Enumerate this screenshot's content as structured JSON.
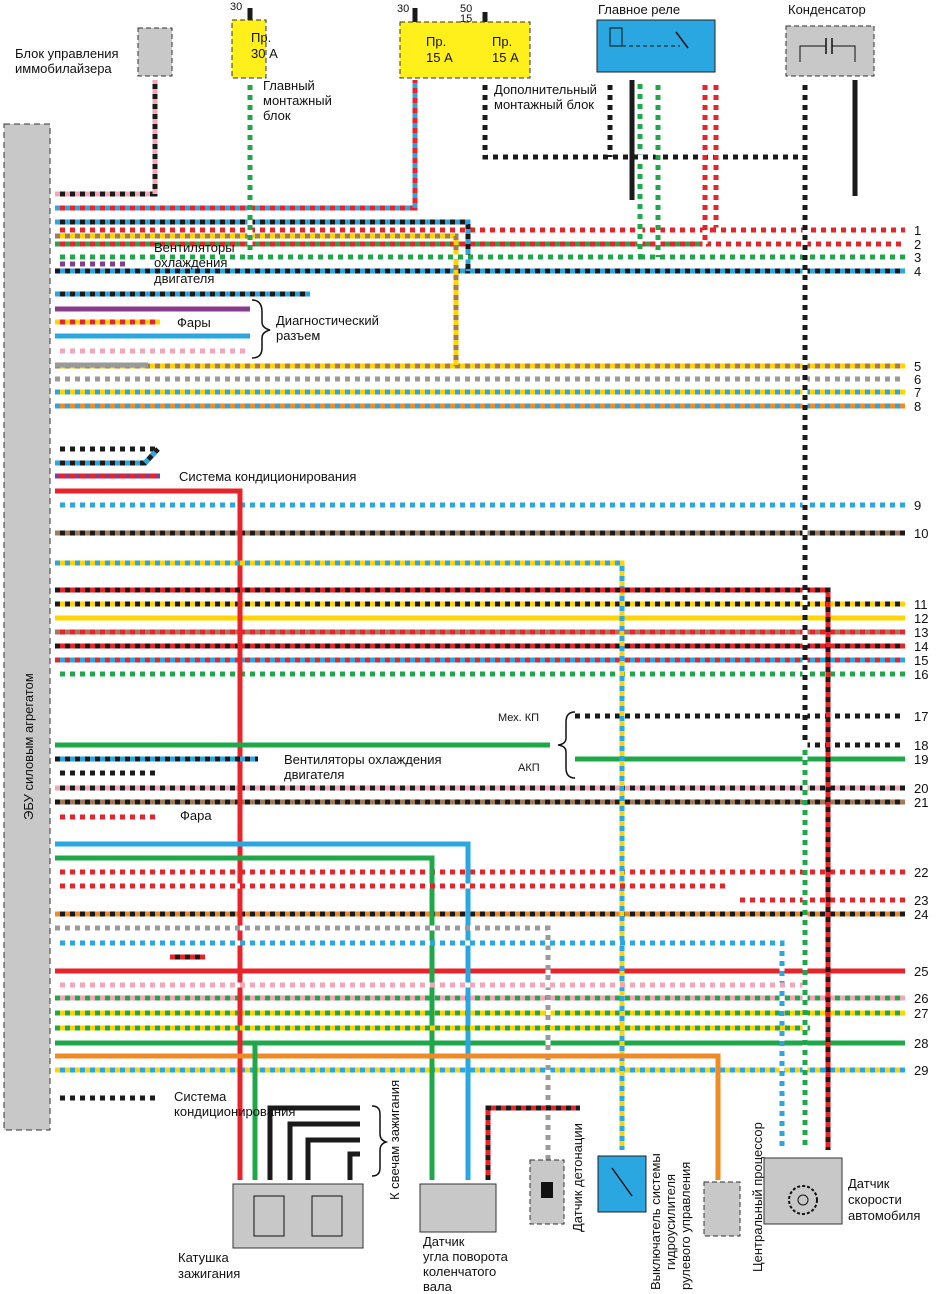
{
  "labels": {
    "immo": [
      "Блок управления",
      "иммобилайзера"
    ],
    "main_block": [
      "Главный",
      "монтажный",
      "блок"
    ],
    "aux_block": [
      "Дополнительный",
      "монтажный блок"
    ],
    "main_relay": "Главное реле",
    "capacitor": "Конденсатор",
    "ecu": "ЭБУ силовым агрегатом",
    "fans1": [
      "Вентиляторы",
      "охлаждения",
      "двигателя"
    ],
    "headlights": "Фары",
    "diag": [
      "Диагностический",
      "разъем"
    ],
    "ac1": "Система кондиционирования",
    "mt": "Мех. КП",
    "at": "АКП",
    "fans2": [
      "Вентиляторы охлаждения",
      "двигателя"
    ],
    "headlight": "Фара",
    "ac2": [
      "Система",
      "кондиционирования"
    ],
    "coil": [
      "Катушка",
      "зажигания"
    ],
    "plugs": "К свечам зажигания",
    "ckp": [
      "Датчик",
      "угла поворота",
      "коленчатого",
      "вала"
    ],
    "knock": "Датчик детонации",
    "ps_switch": [
      "Выключатель системы",
      "гидроусилителя",
      "рулевого управления"
    ],
    "cpu": "Центральный процессор",
    "vss": [
      "Датчик",
      "скорости",
      "автомобиля"
    ]
  },
  "fuses": [
    {
      "name": "Пр.",
      "rating": "30 А",
      "terminal": "30"
    },
    {
      "name": "Пр.",
      "rating": "15 А",
      "terminal": "30"
    },
    {
      "name": "Пр.",
      "rating": "15 А",
      "terminals": [
        "50",
        "15"
      ]
    }
  ],
  "wire_numbers": [
    "1",
    "2",
    "3",
    "4",
    "5",
    "6",
    "7",
    "8",
    "9",
    "10",
    "11",
    "12",
    "13",
    "14",
    "15",
    "16",
    "17",
    "18",
    "19",
    "20",
    "21",
    "22",
    "23",
    "24",
    "25",
    "26",
    "27",
    "28",
    "29"
  ],
  "colors": {
    "black": "#1a1a1a",
    "red": "#e8232a",
    "green": "#1fa84a",
    "blue": "#2aa7e0",
    "yellow": "#ffd400",
    "pink": "#f4a6b8",
    "brown": "#a07a5a",
    "orange": "#f08a24",
    "gray": "#9a9a9a",
    "white": "#ffffff",
    "purple": "#8a3c8c",
    "fuse_fill": "#ffef1a",
    "relay_fill": "#2aa7e0",
    "component_fill": "#c8c8c8"
  }
}
